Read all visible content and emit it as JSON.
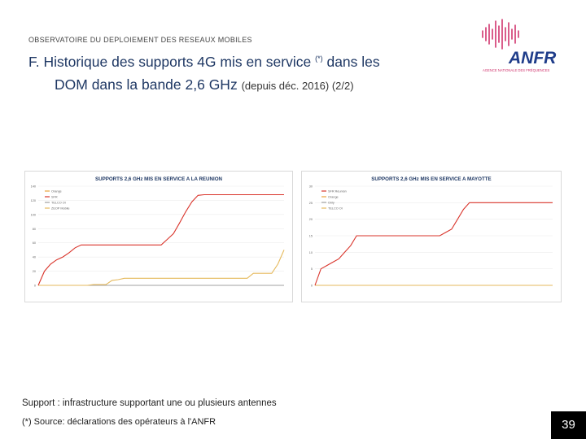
{
  "header": {
    "kicker": "OBSERVATOIRE DU DEPLOIEMENT DES RESEAUX MOBILES",
    "title_line1": "F. Historique des supports 4G mis en service ",
    "title_sup": "(*)",
    "title_line1_end": " dans les",
    "title_line2": "DOM dans la bande 2,6 GHz ",
    "title_line2_small": "(depuis déc. 2016) (2/2)"
  },
  "logo": {
    "text": "ANFR",
    "subtitle": "AGENCE NATIONALE DES FRÉQUENCES",
    "colors": {
      "wave": "#d0356e",
      "text": "#1f3d8a"
    }
  },
  "footer": {
    "note1": "Support : infrastructure supportant une ou plusieurs antennes",
    "note2": "(*) Source: déclarations des opérateurs à l'ANFR",
    "page": "39"
  },
  "chart_data": [
    {
      "type": "line",
      "title": "SUPPORTS 2,6 GHz MIS EN SERVICE  A LA REUNION",
      "ylim": [
        0,
        140
      ],
      "yticks": [
        0,
        20,
        40,
        60,
        80,
        100,
        120,
        140
      ],
      "grid": true,
      "legend_position": "top-left",
      "series": [
        {
          "name": "Orange",
          "color": "#e8a23a",
          "values": [
            0,
            0,
            0,
            0,
            0,
            0,
            0,
            0,
            0,
            0,
            0,
            0,
            0,
            0,
            0,
            0,
            0,
            0,
            0,
            0,
            0,
            0,
            0,
            0,
            0,
            0,
            0,
            0,
            0,
            0,
            0,
            0,
            0,
            0,
            0,
            0,
            0,
            0,
            0,
            0,
            0
          ]
        },
        {
          "name": "SFR",
          "color": "#d9342b",
          "values": [
            0,
            20,
            30,
            36,
            40,
            46,
            53,
            57,
            57,
            57,
            57,
            57,
            57,
            57,
            57,
            57,
            57,
            57,
            57,
            57,
            57,
            65,
            73,
            88,
            104,
            118,
            127,
            128,
            128,
            128,
            128,
            128,
            128,
            128,
            128,
            128,
            128,
            128,
            128,
            128,
            128
          ]
        },
        {
          "name": "TELCO OI",
          "color": "#a0a0a0",
          "values": [
            0,
            0,
            0,
            0,
            0,
            0,
            0,
            0,
            0,
            0,
            0,
            0,
            0,
            0,
            0,
            0,
            0,
            0,
            0,
            0,
            0,
            0,
            0,
            0,
            0,
            0,
            0,
            0,
            0,
            0,
            0,
            0,
            0,
            0,
            0,
            0,
            0,
            0,
            0,
            0,
            0
          ]
        },
        {
          "name": "ZEOP Mobile",
          "color": "#e5b95c",
          "values": [
            0,
            0,
            0,
            0,
            0,
            0,
            0,
            0,
            0,
            1,
            1,
            1,
            7,
            8,
            10,
            10,
            10,
            10,
            10,
            10,
            10,
            10,
            10,
            10,
            10,
            10,
            10,
            10,
            10,
            10,
            10,
            10,
            10,
            10,
            10,
            17,
            17,
            17,
            17,
            30,
            50
          ]
        }
      ]
    },
    {
      "type": "line",
      "title": "SUPPORTS 2,6 GHz MIS EN SERVICE  A MAYOTTE",
      "ylim": [
        0,
        30
      ],
      "yticks": [
        0,
        5,
        10,
        15,
        20,
        25,
        30
      ],
      "grid": true,
      "legend_position": "top-left",
      "series": [
        {
          "name": "SFR Réunion",
          "color": "#d9342b",
          "values": [
            0,
            5,
            6,
            7,
            8,
            10,
            12,
            15,
            15,
            15,
            15,
            15,
            15,
            15,
            15,
            15,
            15,
            15,
            15,
            15,
            15,
            15,
            16,
            17,
            20,
            23,
            25,
            25,
            25,
            25,
            25,
            25,
            25,
            25,
            25,
            25,
            25,
            25,
            25,
            25,
            25
          ]
        },
        {
          "name": "Orange",
          "color": "#e8a23a",
          "values": [
            0,
            0,
            0,
            0,
            0,
            0,
            0,
            0,
            0,
            0,
            0,
            0,
            0,
            0,
            0,
            0,
            0,
            0,
            0,
            0,
            0,
            0,
            0,
            0,
            0,
            0,
            0,
            0,
            0,
            0,
            0,
            0,
            0,
            0,
            0,
            0,
            0,
            0,
            0,
            0,
            0
          ]
        },
        {
          "name": "Only",
          "color": "#a0a0a0",
          "values": [
            0,
            0,
            0,
            0,
            0,
            0,
            0,
            0,
            0,
            0,
            0,
            0,
            0,
            0,
            0,
            0,
            0,
            0,
            0,
            0,
            0,
            0,
            0,
            0,
            0,
            0,
            0,
            0,
            0,
            0,
            0,
            0,
            0,
            0,
            0,
            0,
            0,
            0,
            0,
            0,
            0
          ]
        },
        {
          "name": "TELCO OI",
          "color": "#e5b95c",
          "values": [
            0,
            0,
            0,
            0,
            0,
            0,
            0,
            0,
            0,
            0,
            0,
            0,
            0,
            0,
            0,
            0,
            0,
            0,
            0,
            0,
            0,
            0,
            0,
            0,
            0,
            0,
            0,
            0,
            0,
            0,
            0,
            0,
            0,
            0,
            0,
            0,
            0,
            0,
            0,
            0,
            0
          ]
        }
      ]
    }
  ]
}
